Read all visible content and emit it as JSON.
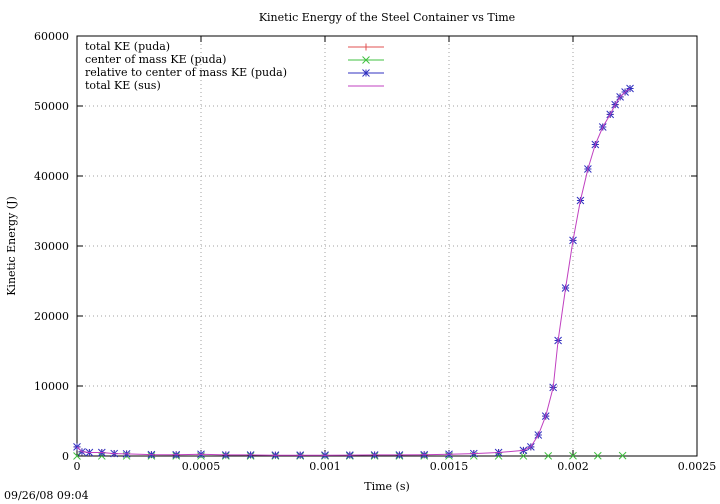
{
  "chart_data": {
    "type": "line",
    "title": "Kinetic Energy of the Steel Container vs Time",
    "xlabel": "Time (s)",
    "ylabel": "Kinetic Energy (J)",
    "xlim": [
      0,
      0.0025
    ],
    "ylim": [
      0,
      60000
    ],
    "x_ticks": [
      "0",
      "0.0005",
      "0.001",
      "0.0015",
      "0.002",
      "0.0025"
    ],
    "y_ticks": [
      "0",
      "10000",
      "20000",
      "30000",
      "40000",
      "50000",
      "60000"
    ],
    "grid": true,
    "legend_position": "top-left",
    "timestamp": "09/26/08 09:04",
    "series": [
      {
        "name": "total KE (puda)",
        "color": "#e05050",
        "marker": "plus",
        "line": false,
        "x": [
          0,
          2e-05,
          5e-05,
          0.0001,
          0.00015,
          0.0002,
          0.0003,
          0.0004,
          0.0005,
          0.0006,
          0.0007,
          0.0008,
          0.0009,
          0.001,
          0.0011,
          0.0012,
          0.0013,
          0.0014,
          0.0015,
          0.0016,
          0.0017,
          0.0018,
          0.00183,
          0.00186,
          0.00189,
          0.00192,
          0.00194,
          0.00197,
          0.002,
          0.00203,
          0.00206,
          0.00209,
          0.00212,
          0.00215,
          0.00217,
          0.00219,
          0.00221,
          0.00223
        ],
        "values": [
          1300,
          600,
          500,
          500,
          350,
          300,
          200,
          180,
          250,
          150,
          150,
          120,
          120,
          120,
          130,
          150,
          150,
          180,
          250,
          350,
          500,
          800,
          1300,
          3000,
          5700,
          9800,
          16500,
          24000,
          30800,
          36500,
          41000,
          44500,
          47000,
          48800,
          50200,
          51300,
          52000,
          52500
        ]
      },
      {
        "name": "center of mass KE (puda)",
        "color": "#40c040",
        "marker": "cross",
        "line": false,
        "x": [
          0,
          0.0001,
          0.0002,
          0.0003,
          0.0004,
          0.0005,
          0.0006,
          0.0007,
          0.0008,
          0.0009,
          0.001,
          0.0011,
          0.0012,
          0.0013,
          0.0014,
          0.0015,
          0.0016,
          0.0017,
          0.0018,
          0.0019,
          0.002,
          0.0021,
          0.0022
        ],
        "values": [
          0,
          10,
          10,
          10,
          10,
          10,
          10,
          10,
          10,
          10,
          10,
          10,
          10,
          10,
          10,
          10,
          10,
          10,
          10,
          20,
          30,
          40,
          50
        ]
      },
      {
        "name": "relative to center of mass KE (puda)",
        "color": "#3030c0",
        "marker": "star",
        "line": false,
        "x": [
          0,
          2e-05,
          5e-05,
          0.0001,
          0.00015,
          0.0002,
          0.0003,
          0.0004,
          0.0005,
          0.0006,
          0.0007,
          0.0008,
          0.0009,
          0.001,
          0.0011,
          0.0012,
          0.0013,
          0.0014,
          0.0015,
          0.0016,
          0.0017,
          0.0018,
          0.00183,
          0.00186,
          0.00189,
          0.00192,
          0.00194,
          0.00197,
          0.002,
          0.00203,
          0.00206,
          0.00209,
          0.00212,
          0.00215,
          0.00217,
          0.00219,
          0.00221,
          0.00223
        ],
        "values": [
          1300,
          600,
          500,
          500,
          350,
          300,
          200,
          180,
          250,
          150,
          150,
          120,
          120,
          120,
          130,
          150,
          150,
          180,
          250,
          350,
          500,
          800,
          1300,
          3000,
          5700,
          9800,
          16500,
          24000,
          30800,
          36500,
          41000,
          44500,
          47000,
          48800,
          50200,
          51300,
          52000,
          52500
        ]
      },
      {
        "name": "total KE (sus)",
        "color": "#c040c0",
        "marker": "none",
        "line": true,
        "x": [
          0,
          2e-05,
          5e-05,
          0.0001,
          0.00015,
          0.0002,
          0.0003,
          0.0004,
          0.0005,
          0.0006,
          0.0007,
          0.0008,
          0.0009,
          0.001,
          0.0011,
          0.0012,
          0.0013,
          0.0014,
          0.0015,
          0.0016,
          0.0017,
          0.0018,
          0.00183,
          0.00186,
          0.00189,
          0.00192,
          0.00194,
          0.00197,
          0.002,
          0.00203,
          0.00206,
          0.00209,
          0.00212,
          0.00215,
          0.00217,
          0.00219,
          0.00221,
          0.00223
        ],
        "values": [
          1300,
          600,
          500,
          500,
          350,
          300,
          200,
          180,
          250,
          150,
          150,
          120,
          120,
          120,
          130,
          150,
          150,
          180,
          250,
          350,
          500,
          800,
          1300,
          3000,
          5700,
          9800,
          16500,
          24000,
          30800,
          36500,
          41000,
          44500,
          47000,
          48800,
          50200,
          51300,
          52000,
          52500
        ]
      }
    ]
  }
}
